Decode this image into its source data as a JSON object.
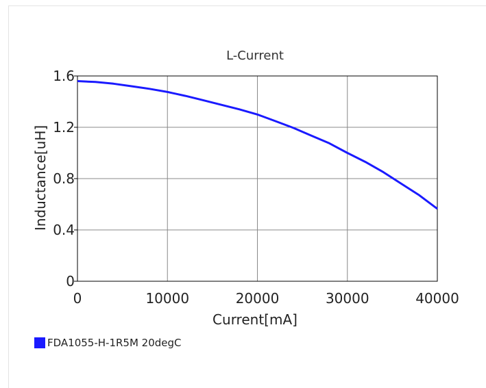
{
  "chart_data": {
    "type": "line",
    "title": "L-Current",
    "xlabel": "Current[mA]",
    "ylabel": "Inductance[uH]",
    "xlim": [
      0,
      40000
    ],
    "ylim": [
      0,
      1.6
    ],
    "x_ticks": [
      "0",
      "10000",
      "20000",
      "30000",
      "40000"
    ],
    "y_ticks": [
      "0",
      "0.4",
      "0.8",
      "1.2",
      "1.6"
    ],
    "grid": true,
    "legend_position": "bottom-left",
    "series": [
      {
        "name": "FDA1055-H-1R5M 20degC",
        "color": "#1a1aff",
        "x": [
          0,
          2000,
          4000,
          6000,
          8000,
          10000,
          12000,
          14000,
          16000,
          18000,
          20000,
          22000,
          24000,
          26000,
          28000,
          30000,
          32000,
          34000,
          36000,
          38000,
          40000
        ],
        "y": [
          1.56,
          1.553,
          1.54,
          1.52,
          1.5,
          1.475,
          1.445,
          1.41,
          1.375,
          1.34,
          1.3,
          1.248,
          1.195,
          1.135,
          1.075,
          1.0,
          0.93,
          0.85,
          0.76,
          0.67,
          0.565
        ]
      }
    ]
  }
}
